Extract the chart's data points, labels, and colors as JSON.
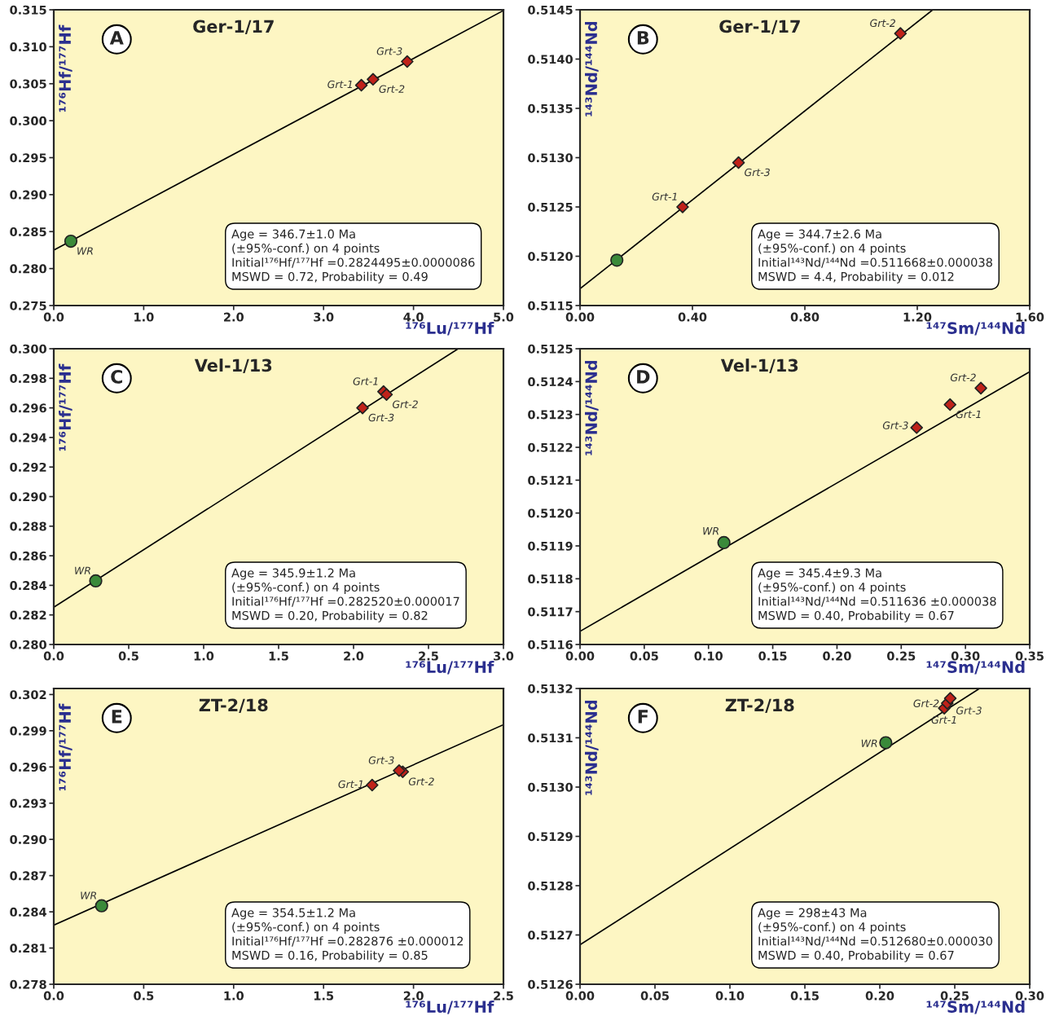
{
  "chart_data": [
    {
      "type": "scatter",
      "title": "Ger-1/17",
      "xlabel": "¹⁷⁶Lu/¹⁷⁷Hf",
      "ylabel": "¹⁷⁶Hf/¹⁷⁷Hf",
      "xlim": [
        0,
        5.0
      ],
      "ylim": [
        0.275,
        0.315
      ],
      "xticks": [
        {
          "value": 0,
          "label": "0.0"
        },
        {
          "value": 1,
          "label": "1.0"
        },
        {
          "value": 2,
          "label": "2.0"
        },
        {
          "value": 3,
          "label": "3.0"
        },
        {
          "value": 4,
          "label": "4.0"
        },
        {
          "value": 5,
          "label": "5.0"
        }
      ],
      "yticks": [
        {
          "value": 0.275,
          "label": "0.275"
        },
        {
          "value": 0.28,
          "label": "0.280"
        },
        {
          "value": 0.285,
          "label": "0.285"
        },
        {
          "value": 0.29,
          "label": "0.290"
        },
        {
          "value": 0.295,
          "label": "0.295"
        },
        {
          "value": 0.3,
          "label": "0.300"
        },
        {
          "value": 0.305,
          "label": "0.305"
        },
        {
          "value": 0.31,
          "label": "0.310"
        },
        {
          "value": 0.315,
          "label": "0.315"
        }
      ],
      "series": [
        {
          "type": "line",
          "color": "#000000",
          "marker": "none",
          "line_style": "solid",
          "x": [
            0,
            5.0
          ],
          "values": [
            0.2825,
            0.3149
          ]
        },
        {
          "color": "#3a8a3a",
          "marker": "circle",
          "x": [
            0.19
          ],
          "values": [
            0.2837
          ]
        },
        {
          "color": "#c0221a",
          "marker": "diamond",
          "x": [
            3.42,
            3.55,
            3.93
          ],
          "values": [
            0.3048,
            0.3056,
            0.308
          ]
        }
      ],
      "annotations": [
        "A",
        "Age = 346.7±1.0 Ma",
        "(±95%-conf.) on 4 points",
        "Initial¹⁷⁶Hf/¹⁷⁷Hf =0.2824495±0.0000086",
        "MSWD = 0.72, Probability = 0.49",
        {
          "text": "WR",
          "x": 0.19,
          "y": 0.2837
        },
        {
          "text": "Grt-1",
          "x": 3.42,
          "y": 0.3048
        },
        {
          "text": "Grt-2",
          "x": 3.55,
          "y": 0.3056
        },
        {
          "text": "Grt-3",
          "x": 3.93,
          "y": 0.308
        }
      ]
    },
    {
      "type": "scatter",
      "title": "Ger-1/17",
      "xlabel": "¹⁴⁷Sm/¹⁴⁴Nd",
      "ylabel": "¹⁴³Nd/¹⁴⁴Nd",
      "xlim": [
        0,
        1.6
      ],
      "ylim": [
        0.5115,
        0.5145
      ],
      "xticks": [
        {
          "value": 0,
          "label": "0.00"
        },
        {
          "value": 0.4,
          "label": "0.40"
        },
        {
          "value": 0.8,
          "label": "0.80"
        },
        {
          "value": 1.2,
          "label": "1.20"
        },
        {
          "value": 1.6,
          "label": "1.60"
        }
      ],
      "yticks": [
        {
          "value": 0.5115,
          "label": "0.5115"
        },
        {
          "value": 0.512,
          "label": "0.5120"
        },
        {
          "value": 0.5125,
          "label": "0.5125"
        },
        {
          "value": 0.513,
          "label": "0.5130"
        },
        {
          "value": 0.5135,
          "label": "0.5135"
        },
        {
          "value": 0.514,
          "label": "0.5140"
        },
        {
          "value": 0.5145,
          "label": "0.5145"
        }
      ],
      "series": [
        {
          "type": "line",
          "color": "#000000",
          "marker": "none",
          "line_style": "solid",
          "x": [
            0,
            1.255
          ],
          "values": [
            0.51167,
            0.5145
          ]
        },
        {
          "color": "#3a8a3a",
          "marker": "circle",
          "x": [
            0.131
          ],
          "values": [
            0.51196
          ]
        },
        {
          "color": "#c0221a",
          "marker": "diamond",
          "x": [
            0.365,
            1.14,
            0.564
          ],
          "values": [
            0.5125,
            0.51426,
            0.51295
          ]
        }
      ],
      "annotations": [
        "B",
        "Age = 344.7±2.6 Ma",
        "(±95%-conf.) on 4 points",
        "Initial¹⁴³Nd/¹⁴⁴Nd =0.511668±0.000038",
        "MSWD = 4.4, Probability = 0.012",
        {
          "text": "Grt-1",
          "x": 0.365,
          "y": 0.5125
        },
        {
          "text": "Grt-2",
          "x": 1.14,
          "y": 0.51426
        },
        {
          "text": "Grt-3",
          "x": 0.564,
          "y": 0.51295
        }
      ]
    },
    {
      "type": "scatter",
      "title": "Vel-1/13",
      "xlabel": "¹⁷⁶Lu/¹⁷⁷Hf",
      "ylabel": "¹⁷⁶Hf/¹⁷⁷Hf",
      "xlim": [
        0,
        3.0
      ],
      "ylim": [
        0.28,
        0.3
      ],
      "xticks": [
        {
          "value": 0,
          "label": "0.0"
        },
        {
          "value": 0.5,
          "label": "0.5"
        },
        {
          "value": 1,
          "label": "1.0"
        },
        {
          "value": 1.5,
          "label": "1.5"
        },
        {
          "value": 2,
          "label": "2.0"
        },
        {
          "value": 2.5,
          "label": "2.5"
        },
        {
          "value": 3,
          "label": "3.0"
        }
      ],
      "yticks": [
        {
          "value": 0.28,
          "label": "0.280"
        },
        {
          "value": 0.282,
          "label": "0.282"
        },
        {
          "value": 0.284,
          "label": "0.284"
        },
        {
          "value": 0.286,
          "label": "0.286"
        },
        {
          "value": 0.288,
          "label": "0.288"
        },
        {
          "value": 0.29,
          "label": "0.290"
        },
        {
          "value": 0.292,
          "label": "0.292"
        },
        {
          "value": 0.294,
          "label": "0.294"
        },
        {
          "value": 0.296,
          "label": "0.296"
        },
        {
          "value": 0.298,
          "label": "0.298"
        },
        {
          "value": 0.3,
          "label": "0.300"
        }
      ],
      "series": [
        {
          "type": "line",
          "color": "#000000",
          "marker": "none",
          "line_style": "solid",
          "x": [
            0,
            2.698
          ],
          "values": [
            0.28252,
            0.3
          ]
        },
        {
          "color": "#3a8a3a",
          "marker": "circle",
          "x": [
            0.28
          ],
          "values": [
            0.2843
          ]
        },
        {
          "color": "#c0221a",
          "marker": "diamond",
          "x": [
            2.2,
            2.22,
            2.06
          ],
          "values": [
            0.2971,
            0.2969,
            0.296
          ]
        }
      ],
      "annotations": [
        "C",
        "Age = 345.9±1.2 Ma",
        "(±95%-conf.) on 4 points",
        "Initial¹⁷⁶Hf/¹⁷⁷Hf =0.282520±0.000017",
        "MSWD = 0.20, Probability = 0.82",
        {
          "text": "WR",
          "x": 0.28,
          "y": 0.2843
        },
        {
          "text": "Grt-1",
          "x": 2.2,
          "y": 0.2971
        },
        {
          "text": "Grt-2",
          "x": 2.22,
          "y": 0.2969
        },
        {
          "text": "Grt-3",
          "x": 2.06,
          "y": 0.296
        }
      ]
    },
    {
      "type": "scatter",
      "title": "Vel-1/13",
      "xlabel": "¹⁴⁷Sm/¹⁴⁴Nd",
      "ylabel": "¹⁴³Nd/¹⁴⁴Nd",
      "xlim": [
        0,
        0.35
      ],
      "ylim": [
        0.5116,
        0.5125
      ],
      "xticks": [
        {
          "value": 0,
          "label": "0.00"
        },
        {
          "value": 0.05,
          "label": "0.05"
        },
        {
          "value": 0.1,
          "label": "0.10"
        },
        {
          "value": 0.15,
          "label": "0.15"
        },
        {
          "value": 0.2,
          "label": "0.20"
        },
        {
          "value": 0.25,
          "label": "0.25"
        },
        {
          "value": 0.3,
          "label": "0.30"
        },
        {
          "value": 0.35,
          "label": "0.35"
        }
      ],
      "yticks": [
        {
          "value": 0.5116,
          "label": "0.5116"
        },
        {
          "value": 0.5117,
          "label": "0.5117"
        },
        {
          "value": 0.5118,
          "label": "0.5118"
        },
        {
          "value": 0.5119,
          "label": "0.5119"
        },
        {
          "value": 0.512,
          "label": "0.5120"
        },
        {
          "value": 0.5121,
          "label": "0.5121"
        },
        {
          "value": 0.5122,
          "label": "0.5122"
        },
        {
          "value": 0.5123,
          "label": "0.5123"
        },
        {
          "value": 0.5124,
          "label": "0.5124"
        },
        {
          "value": 0.5125,
          "label": "0.5125"
        }
      ],
      "series": [
        {
          "type": "line",
          "color": "#000000",
          "marker": "none",
          "line_style": "solid",
          "x": [
            0,
            0.35
          ],
          "values": [
            0.51164,
            0.51243
          ]
        },
        {
          "color": "#3a8a3a",
          "marker": "circle",
          "x": [
            0.112
          ],
          "values": [
            0.51191
          ]
        },
        {
          "color": "#c0221a",
          "marker": "diamond",
          "x": [
            0.288,
            0.312,
            0.262
          ],
          "values": [
            0.51233,
            0.51238,
            0.51226
          ]
        }
      ],
      "annotations": [
        "D",
        "Age = 345.4±9.3 Ma",
        "(±95%-conf.) on 4 points",
        "Initial¹⁴³Nd/¹⁴⁴Nd =0.511636 ±0.000038",
        "MSWD = 0.40, Probability = 0.67",
        {
          "text": "WR",
          "x": 0.112,
          "y": 0.511914
        },
        {
          "text": "Grt-1",
          "x": 0.288,
          "y": 0.51233
        },
        {
          "text": "Grt-2",
          "x": 0.312,
          "y": 0.512381
        },
        {
          "text": "Grt-3",
          "x": 0.262,
          "y": 0.512264
        }
      ]
    },
    {
      "type": "scatter",
      "title": "ZT-2/18",
      "xlabel": "¹⁷⁶Lu/¹⁷⁷Hf",
      "ylabel": "¹⁷⁶Hf/¹⁷⁷Hf",
      "xlim": [
        0,
        2.5
      ],
      "ylim": [
        0.278,
        0.3025
      ],
      "xticks": [
        {
          "value": 0,
          "label": "0.0"
        },
        {
          "value": 0.5,
          "label": "0.5"
        },
        {
          "value": 1,
          "label": "1.0"
        },
        {
          "value": 1.5,
          "label": "1.5"
        },
        {
          "value": 2,
          "label": "2.0"
        },
        {
          "value": 2.5,
          "label": "2.5"
        }
      ],
      "yticks": [
        {
          "value": 0.278,
          "label": "0.278"
        },
        {
          "value": 0.281,
          "label": "0.281"
        },
        {
          "value": 0.284,
          "label": "0.284"
        },
        {
          "value": 0.287,
          "label": "0.287"
        },
        {
          "value": 0.29,
          "label": "0.290"
        },
        {
          "value": 0.293,
          "label": "0.293"
        },
        {
          "value": 0.296,
          "label": "0.296"
        },
        {
          "value": 0.299,
          "label": "0.299"
        },
        {
          "value": 0.302,
          "label": "0.302"
        }
      ],
      "series": [
        {
          "type": "line",
          "color": "#000000",
          "marker": "none",
          "line_style": "solid",
          "x": [
            0,
            2.5
          ],
          "values": [
            0.2829,
            0.2995
          ]
        },
        {
          "color": "#3a8a3a",
          "marker": "circle",
          "x": [
            0.266
          ],
          "values": [
            0.2845
          ]
        },
        {
          "color": "#c0221a",
          "marker": "diamond",
          "x": [
            1.77,
            1.94,
            1.92
          ],
          "values": [
            0.2945,
            0.2956,
            0.2957
          ]
        }
      ],
      "annotations": [
        "E",
        "Age = 354.5±1.2 Ma",
        "(±95%-conf.) on 4 points",
        "Initial¹⁷⁶Hf/¹⁷⁷Hf =0.282876 ±0.000012",
        "MSWD = 0.16, Probability = 0.85",
        {
          "text": "WR",
          "x": 0.266,
          "y": 0.2845
        },
        {
          "text": "Grt-1",
          "x": 1.77,
          "y": 0.2945
        },
        {
          "text": "Grt-2",
          "x": 1.94,
          "y": 0.2956
        },
        {
          "text": "Grt-3",
          "x": 1.92,
          "y": 0.2957
        }
      ]
    },
    {
      "type": "scatter",
      "title": "ZT-2/18",
      "xlabel": "¹⁴⁷Sm/¹⁴⁴Nd",
      "ylabel": "¹⁴³Nd/¹⁴⁴Nd",
      "xlim": [
        0,
        0.3
      ],
      "ylim": [
        0.5126,
        0.5132
      ],
      "xticks": [
        {
          "value": 0,
          "label": "0.00"
        },
        {
          "value": 0.05,
          "label": "0.05"
        },
        {
          "value": 0.1,
          "label": "0.10"
        },
        {
          "value": 0.15,
          "label": "0.15"
        },
        {
          "value": 0.2,
          "label": "0.20"
        },
        {
          "value": 0.25,
          "label": "0.25"
        },
        {
          "value": 0.3,
          "label": "0.30"
        }
      ],
      "yticks": [
        {
          "value": 0.5126,
          "label": "0.5126"
        },
        {
          "value": 0.5127,
          "label": "0.5127"
        },
        {
          "value": 0.5128,
          "label": "0.5128"
        },
        {
          "value": 0.5129,
          "label": "0.5129"
        },
        {
          "value": 0.513,
          "label": "0.5130"
        },
        {
          "value": 0.5131,
          "label": "0.5131"
        },
        {
          "value": 0.5132,
          "label": "0.5132"
        }
      ],
      "series": [
        {
          "type": "line",
          "color": "#000000",
          "marker": "none",
          "line_style": "solid",
          "x": [
            0,
            0.2665
          ],
          "values": [
            0.51268,
            0.5132
          ]
        },
        {
          "color": "#3a8a3a",
          "marker": "circle",
          "x": [
            0.204
          ],
          "values": [
            0.51309
          ]
        },
        {
          "color": "#c0221a",
          "marker": "diamond",
          "x": [
            0.243,
            0.245,
            0.247
          ],
          "values": [
            0.51316,
            0.51317,
            0.51318
          ]
        }
      ],
      "annotations": [
        "F",
        "Age = 298±43 Ma",
        "(±95%-conf.) on 4 points",
        "Initial¹⁴³Nd/¹⁴⁴Nd =0.512680±0.000030",
        "MSWD = 0.40, Probability = 0.67",
        {
          "text": "WR",
          "x": 0.204,
          "y": 0.513087
        },
        {
          "text": "Grt-1",
          "x": 0.243,
          "y": 0.513163
        },
        {
          "text": "Grt-2",
          "x": 0.245,
          "y": 0.513168
        },
        {
          "text": "Grt-3",
          "x": 0.247,
          "y": 0.513175
        }
      ]
    }
  ]
}
